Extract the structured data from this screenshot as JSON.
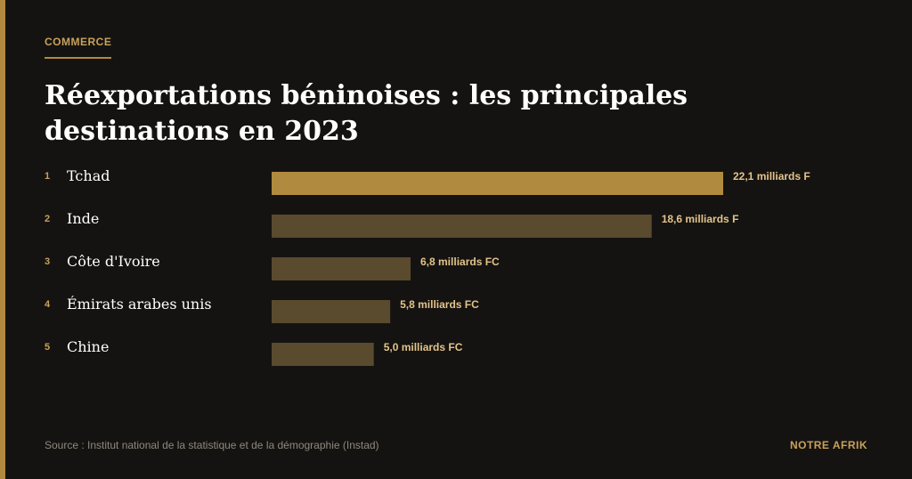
{
  "header": {
    "category": "COMMERCE",
    "title": "Réexportations béninoises : les principales destinations en 2023"
  },
  "chart_data": {
    "type": "bar",
    "orientation": "horizontal",
    "categories": [
      "Tchad",
      "Inde",
      "Côte d'Ivoire",
      "Émirats arabes unis",
      "Chine"
    ],
    "ranks": [
      "1",
      "2",
      "3",
      "4",
      "5"
    ],
    "values": [
      22.1,
      18.6,
      6.8,
      5.8,
      5.0
    ],
    "value_labels": [
      "22,1 milliards F",
      "18,6 milliards F",
      "6,8 milliards FC",
      "5,8 milliards FC",
      "5,0 milliards FC"
    ],
    "grid": false,
    "colors": {
      "highlight": "#b08a3e",
      "bar": "#5a4a2e",
      "label": "#e2c48a",
      "rank": "#c9a15a",
      "category": "#ffffff"
    }
  },
  "footer": {
    "source": "Source : Institut national de la statistique et de la démographie (Instad)",
    "brand": "NOTRE AFRIK"
  }
}
